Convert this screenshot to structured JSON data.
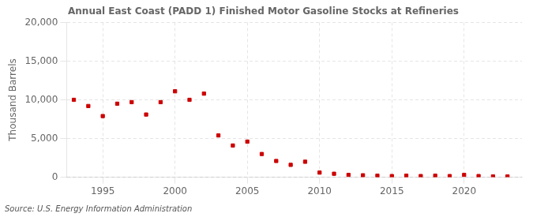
{
  "chart_data": {
    "type": "scatter",
    "title": "Annual East Coast (PADD 1) Finished Motor Gasoline Stocks at Refineries",
    "ylabel": "Thousand Barrels",
    "annotations": [
      "Source: U.S. Energy Information Administration"
    ],
    "x": [
      1993,
      1994,
      1995,
      1996,
      1997,
      1998,
      1999,
      2000,
      2001,
      2002,
      2003,
      2004,
      2005,
      2006,
      2007,
      2008,
      2009,
      2010,
      2011,
      2012,
      2013,
      2014,
      2015,
      2016,
      2017,
      2018,
      2019,
      2020,
      2021,
      2022,
      2023
    ],
    "values": [
      10000,
      9200,
      7900,
      9500,
      9700,
      8100,
      9700,
      11100,
      10000,
      10800,
      5400,
      4100,
      4600,
      3000,
      2100,
      1600,
      2000,
      600,
      450,
      300,
      250,
      200,
      150,
      200,
      150,
      200,
      150,
      300,
      150,
      100,
      100
    ],
    "color": "#cc0000",
    "marker": "square",
    "xlim": [
      1992.5,
      2024
    ],
    "xticks": [
      1995,
      2000,
      2005,
      2010,
      2015,
      2020
    ],
    "ylim": [
      0,
      20000
    ],
    "yticks": [
      0,
      {
        "value": 5000,
        "label": "5,000"
      },
      {
        "value": 10000,
        "label": "10,000"
      },
      {
        "value": 15000,
        "label": "15,000"
      },
      {
        "value": 20000,
        "label": "20,000"
      }
    ],
    "grid": true
  }
}
